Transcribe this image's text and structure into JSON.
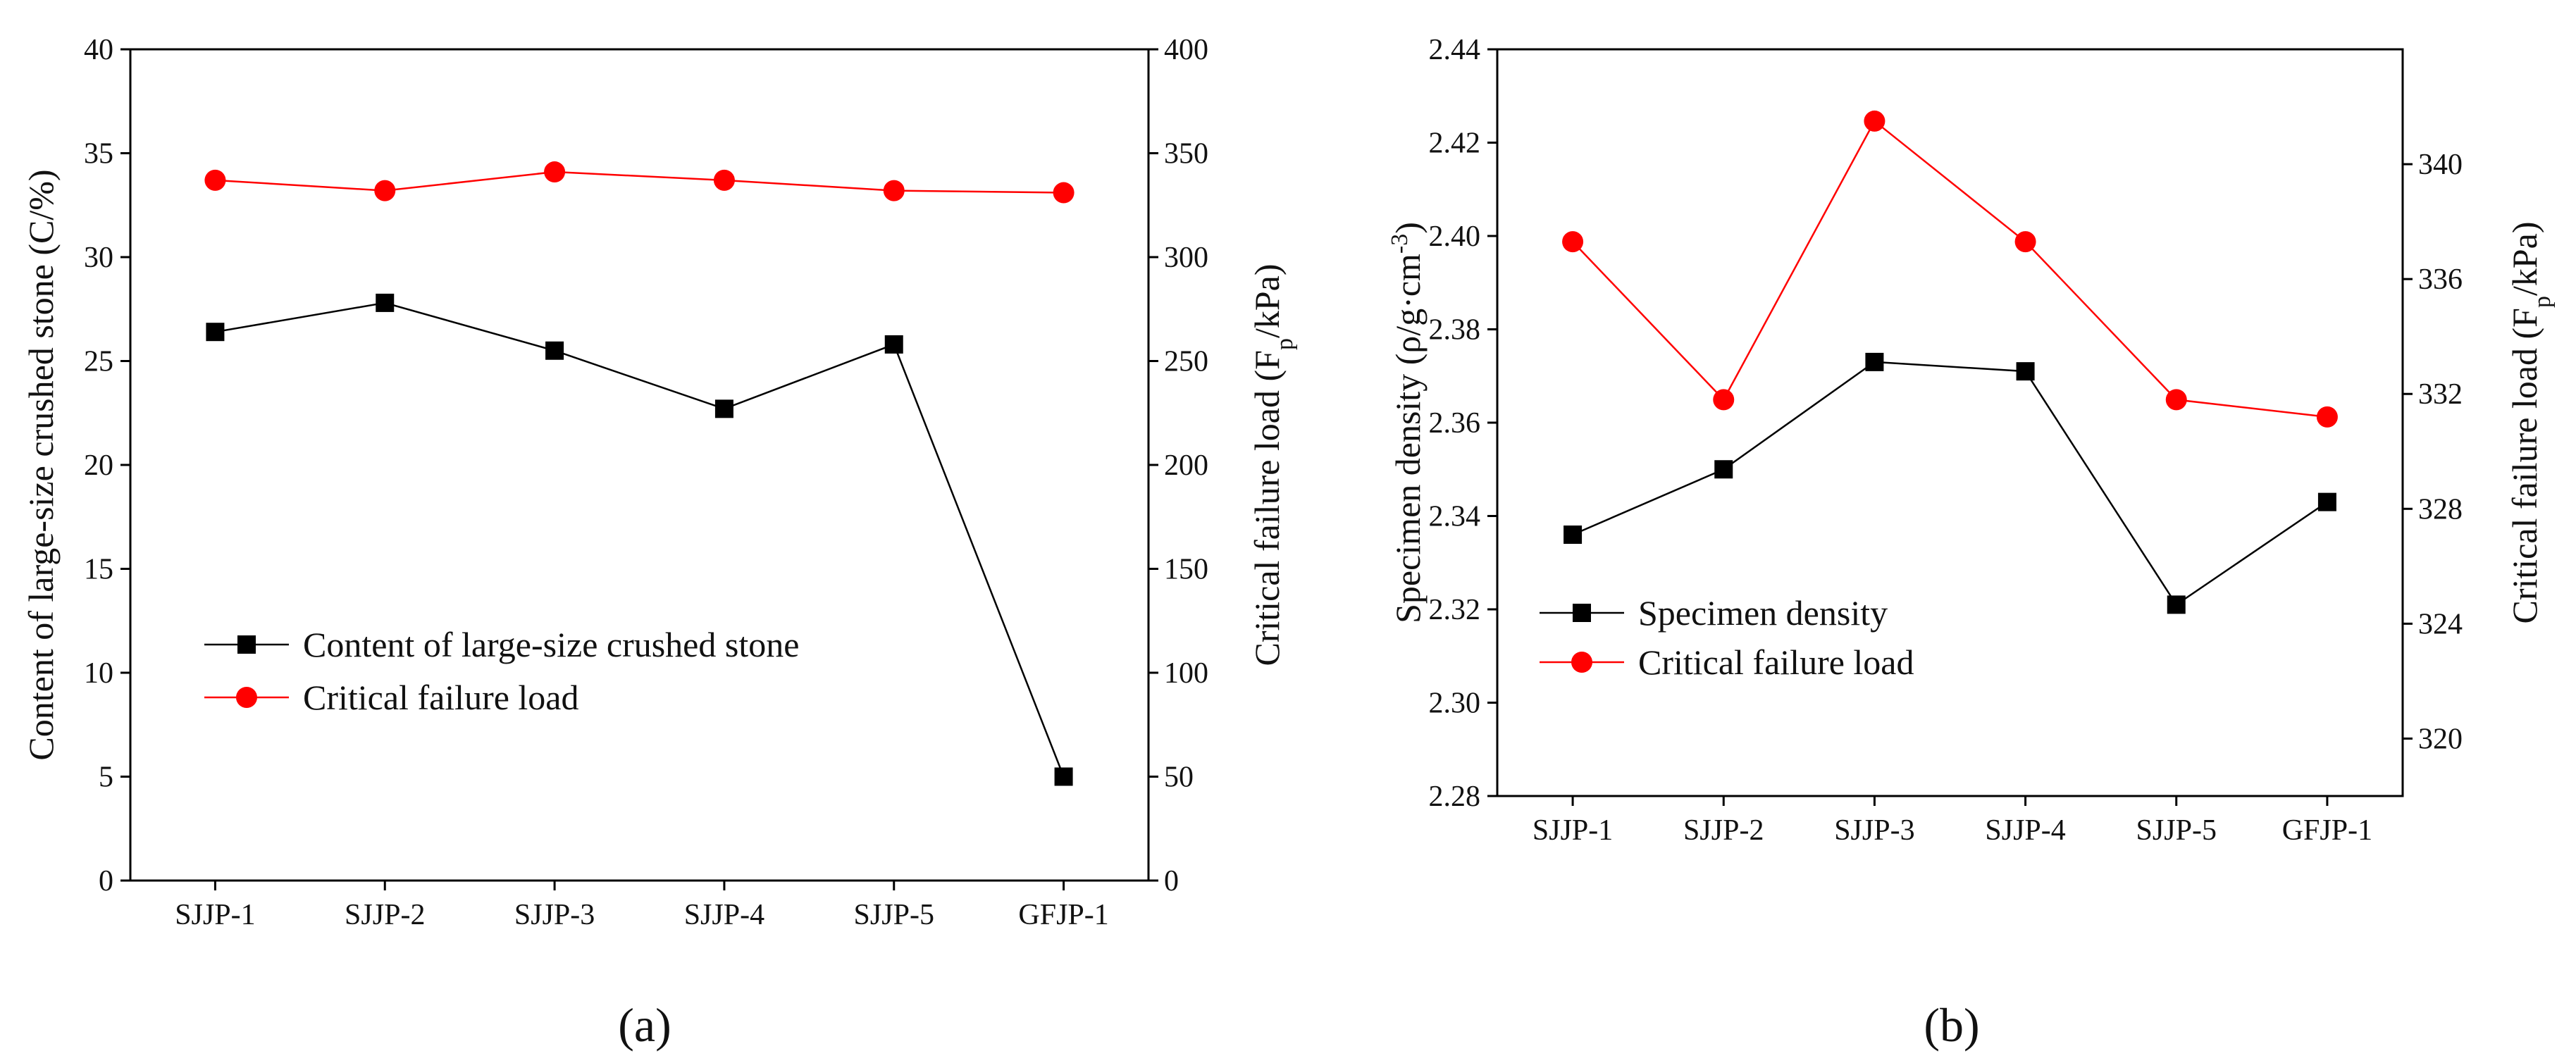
{
  "colors": {
    "series_black": "#000000",
    "series_red": "#ff0000",
    "axis": "#000000"
  },
  "chart_data": [
    {
      "type": "line",
      "panel_label": "(a)",
      "categories": [
        "SJJP-1",
        "SJJP-2",
        "SJJP-3",
        "SJJP-4",
        "SJJP-5",
        "GFJP-1"
      ],
      "ylabel_left": "Content of large-size crushed stone (C/%)",
      "ylabel_right": "Critical failure load (F_p/kPa)",
      "ylim_left": [
        0,
        40
      ],
      "ylim_right": [
        0,
        400
      ],
      "yticks_left": [
        "0",
        "5",
        "10",
        "15",
        "20",
        "25",
        "30",
        "35",
        "40"
      ],
      "yticks_right": [
        "0",
        "50",
        "100",
        "150",
        "200",
        "250",
        "300",
        "350",
        "400"
      ],
      "grid": false,
      "legend_placement": "lower-left",
      "series": [
        {
          "name": "Content of large-size crushed stone",
          "axis": "left",
          "marker": "square",
          "color": "#000000",
          "values": [
            26.4,
            27.8,
            25.5,
            22.7,
            25.8,
            5.0
          ]
        },
        {
          "name": "Critical failure load",
          "axis": "right",
          "marker": "circle",
          "color": "#ff0000",
          "values": [
            337,
            332,
            341,
            337,
            332,
            331
          ]
        }
      ]
    },
    {
      "type": "line",
      "panel_label": "(b)",
      "categories": [
        "SJJP-1",
        "SJJP-2",
        "SJJP-3",
        "SJJP-4",
        "SJJP-5",
        "GFJP-1"
      ],
      "ylabel_left": "Specimen density (ρ/g·cm^-3)",
      "ylabel_right": "Critical failure load (F_p/kPa)",
      "ylim_left": [
        2.28,
        2.44
      ],
      "ylim_right": [
        318,
        344
      ],
      "yticks_left": [
        "2.28",
        "2.30",
        "2.32",
        "2.34",
        "2.36",
        "2.38",
        "2.40",
        "2.42",
        "2.44"
      ],
      "yticks_right": [
        "320",
        "324",
        "328",
        "332",
        "336",
        "340"
      ],
      "yticks_right_values": [
        320,
        324,
        328,
        332,
        336,
        340
      ],
      "grid": false,
      "legend_placement": "lower-left",
      "series": [
        {
          "name": "Specimen density",
          "axis": "left",
          "marker": "square",
          "color": "#000000",
          "values": [
            2.336,
            2.35,
            2.373,
            2.371,
            2.321,
            2.343
          ]
        },
        {
          "name": "Critical failure load",
          "axis": "right",
          "marker": "circle",
          "color": "#ff0000",
          "values": [
            337.3,
            331.8,
            341.5,
            337.3,
            331.8,
            331.2
          ]
        }
      ]
    }
  ]
}
